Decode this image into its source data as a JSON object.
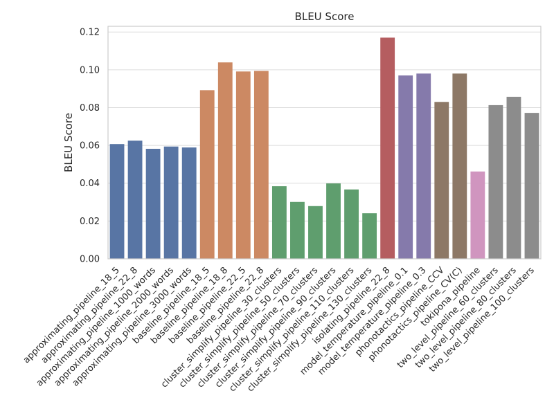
{
  "chart_data": {
    "type": "bar",
    "title": "BLEU Score",
    "xlabel": "",
    "ylabel": "BLEU Score",
    "ylim": [
      0,
      0.123
    ],
    "yticks": [
      "0.00",
      "0.02",
      "0.04",
      "0.06",
      "0.08",
      "0.10",
      "0.12"
    ],
    "grid": "horizontal",
    "categories": [
      "approximating_pipeline_18_5",
      "approximating_pipeline_22_8",
      "approximating_pipeline_1000_words",
      "approximating_pipeline_2000_words",
      "approximating_pipeline_3000_words",
      "baseline_pipeline_18_5",
      "baseline_pipeline_18_8",
      "baseline_pipeline_22_5",
      "baseline_pipeline_22_8",
      "cluster_simplify_pipeline_30_clusters",
      "cluster_simplify_pipeline_50_clusters",
      "cluster_simplify_pipeline_70_clusters",
      "cluster_simplify_pipeline_90_clusters",
      "cluster_simplify_pipeline_110_clusters",
      "cluster_simplify_pipeline_130_clusters",
      "isolating_pipeline_22_8",
      "model_temperature_pipeline_0.1",
      "model_temperature_pipeline_0.3",
      "phonotactics_pipeline_CCV",
      "phonotactics_pipeline_CV(C)",
      "tokipona_pipeline",
      "two_level_pipeline_60_clusters",
      "two_level_pipeline_80_clusters",
      "two_level_pipeline_100_clusters"
    ],
    "values": [
      0.0607,
      0.0625,
      0.0582,
      0.0594,
      0.0589,
      0.0892,
      0.1039,
      0.0991,
      0.0994,
      0.0384,
      0.0301,
      0.0279,
      0.0399,
      0.0367,
      0.0241,
      0.117,
      0.097,
      0.098,
      0.083,
      0.098,
      0.0462,
      0.0813,
      0.0857,
      0.0772
    ],
    "colors": [
      "#5875a4",
      "#5875a4",
      "#5875a4",
      "#5875a4",
      "#5875a4",
      "#cc8963",
      "#cc8963",
      "#cc8963",
      "#cc8963",
      "#5f9e6e",
      "#5f9e6e",
      "#5f9e6e",
      "#5f9e6e",
      "#5f9e6e",
      "#5f9e6e",
      "#b55d60",
      "#857aab",
      "#857aab",
      "#8d7866",
      "#8d7866",
      "#d095bf",
      "#8c8c8c",
      "#8c8c8c",
      "#8c8c8c"
    ]
  }
}
